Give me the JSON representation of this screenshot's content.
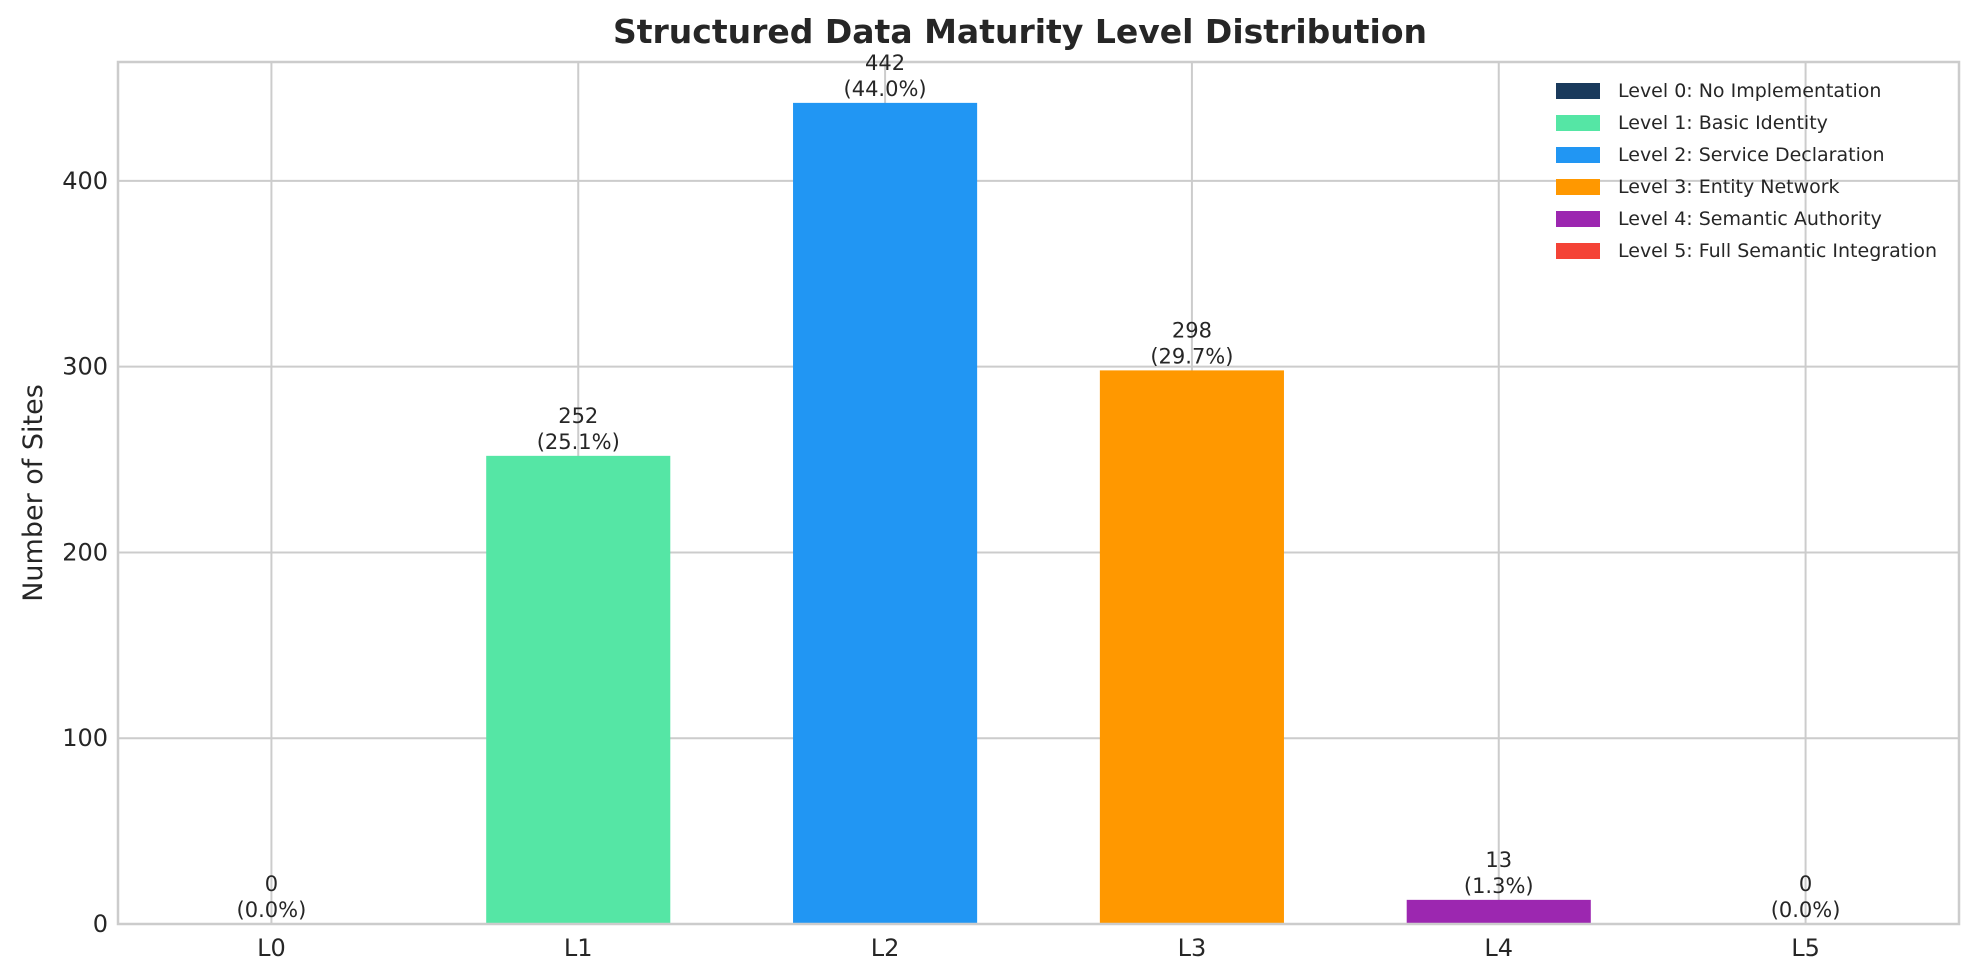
{
  "chart_data": {
    "type": "bar",
    "title": "Structured Data Maturity Level Distribution",
    "xlabel": "",
    "ylabel": "Number of Sites",
    "categories": [
      "L0",
      "L1",
      "L2",
      "L3",
      "L4",
      "L5"
    ],
    "values": [
      0,
      252,
      442,
      298,
      13,
      0
    ],
    "data_labels": [
      [
        "0",
        "(0.0%)"
      ],
      [
        "252",
        "(25.1%)"
      ],
      [
        "442",
        "(44.0%)"
      ],
      [
        "298",
        "(29.7%)"
      ],
      [
        "13",
        "(1.3%)"
      ],
      [
        "0",
        "(0.0%)"
      ]
    ],
    "colors": [
      "#1a3a5c",
      "#55e6a5",
      "#2196f3",
      "#ff9800",
      "#9c27b0",
      "#f44336"
    ],
    "ylim": [
      0,
      464
    ],
    "yticks": [
      0,
      100,
      200,
      300,
      400
    ],
    "grid": true,
    "legend_position": "top-right",
    "legend": [
      "Level 0: No Implementation",
      "Level 1: Basic Identity",
      "Level 2: Service Declaration",
      "Level 3: Entity Network",
      "Level 4: Semantic Authority",
      "Level 5: Full Semantic Integration"
    ]
  }
}
